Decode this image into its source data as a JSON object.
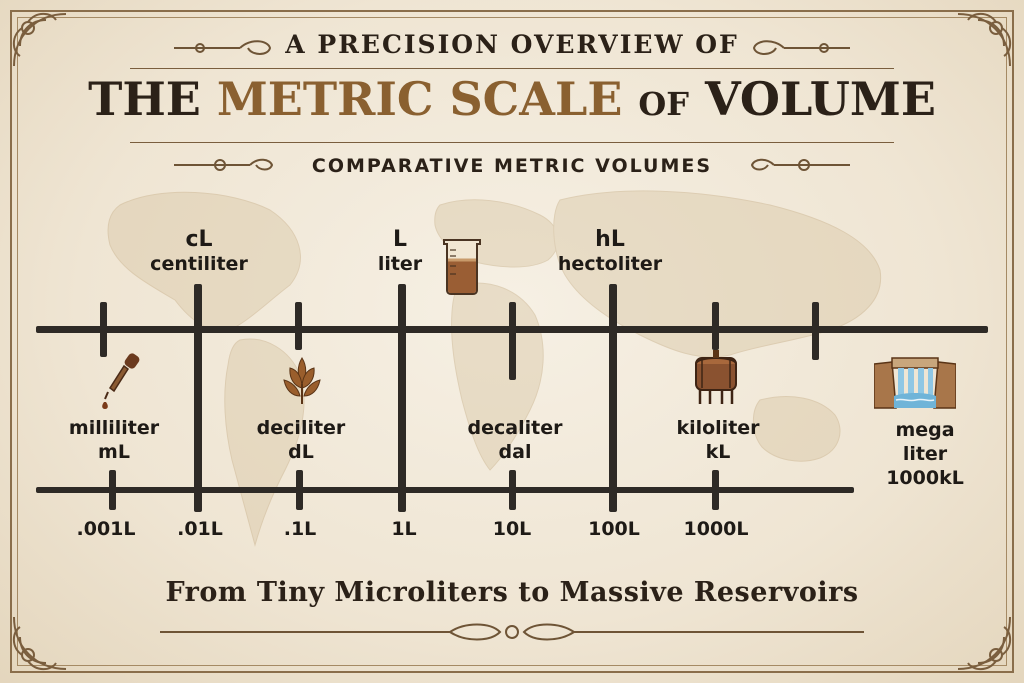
{
  "title": {
    "top": "A PRECISION OVERVIEW OF",
    "main_the": "THE",
    "main_accent": "METRIC SCALE",
    "main_of": "OF",
    "main_end": "VOLUME",
    "subtitle": "COMPARATIVE METRIC VOLUMES"
  },
  "upper_labels": [
    {
      "abbr": "cL",
      "name": "centiliter"
    },
    {
      "abbr": "L",
      "name": "liter"
    },
    {
      "abbr": "hL",
      "name": "hectoliter"
    }
  ],
  "lower_labels": [
    {
      "name": "milliliter",
      "abbr": "mL"
    },
    {
      "name": "deciliter",
      "abbr": "dL"
    },
    {
      "name": "decaliter",
      "abbr": "dal"
    },
    {
      "name": "kiloliter",
      "abbr": "kL"
    },
    {
      "name": "mega",
      "name2": "liter",
      "abbr": "1000kL"
    }
  ],
  "scale_values": [
    ".001L",
    ".01L",
    ".1L",
    "1L",
    "10L",
    "100L",
    "1000L"
  ],
  "footer": "From Tiny Microliters to Massive Reservoirs",
  "icons": [
    "dropper-icon",
    "wheat-icon",
    "beaker-icon",
    "tank-icon",
    "dam-icon"
  ],
  "colors": {
    "ink": "#2e2a26",
    "accent": "#8a6030",
    "paper": "#efe6d6",
    "border": "#8a6e4b"
  }
}
